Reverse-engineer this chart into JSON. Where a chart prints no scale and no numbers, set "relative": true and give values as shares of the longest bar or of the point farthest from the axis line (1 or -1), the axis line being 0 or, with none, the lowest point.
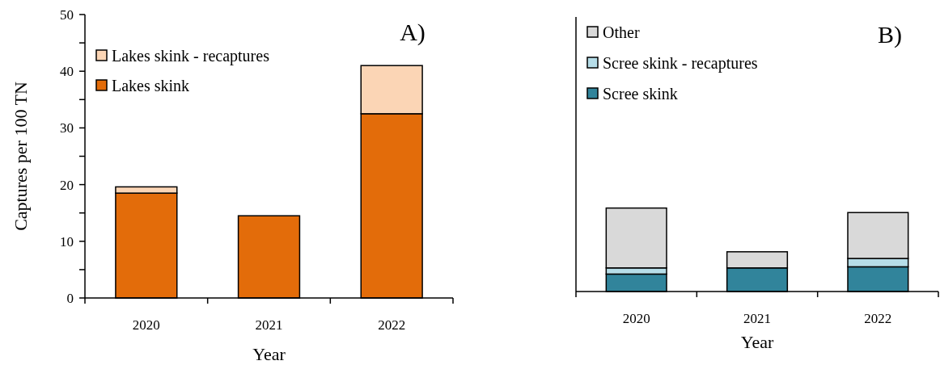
{
  "chart_data": [
    {
      "type": "bar",
      "title": "A)",
      "xlabel": "Year",
      "ylabel": "Captures per 100 TN",
      "categories": [
        "2020",
        "2021",
        "2022"
      ],
      "stacked": true,
      "legend": "top left",
      "ylim": [
        0,
        50
      ],
      "yticks": [
        0,
        {
          "value": 5,
          "label": null
        },
        10,
        {
          "value": 15,
          "label": null
        },
        20,
        {
          "value": 25,
          "label": null
        },
        30,
        {
          "value": 35,
          "label": null
        },
        40,
        {
          "value": 45,
          "label": null
        },
        50
      ],
      "series": [
        {
          "name": "Lakes skink",
          "color": "#e36c0a",
          "values": [
            18.5,
            14.5,
            32.5
          ]
        },
        {
          "name": "Lakes skink - recaptures",
          "color": "#fbd5b5",
          "values": [
            1.1,
            0,
            8.5
          ]
        }
      ]
    },
    {
      "type": "bar",
      "title": "B)",
      "xlabel": "Year",
      "categories": [
        "2020",
        "2021",
        "2022"
      ],
      "stacked": true,
      "relative": true,
      "legend": "top left",
      "series": [
        {
          "name": "Scree skink",
          "color": "#31849b",
          "values": [
            0.209,
            0.283,
            0.296
          ]
        },
        {
          "name": "Scree skink - recaptures",
          "color": "#b6dde8",
          "values": [
            0.074,
            0,
            0.1
          ]
        },
        {
          "name": "Other",
          "color": "#d9d9d9",
          "values": [
            0.717,
            0.193,
            0.55
          ]
        }
      ]
    }
  ]
}
